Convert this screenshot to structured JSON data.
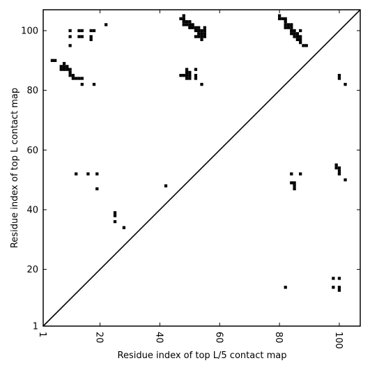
{
  "chart_data": {
    "type": "scatter",
    "title": "",
    "xlabel": "Residue index of top L/5 contact map",
    "ylabel": "Residue index of top L contact map",
    "xlim": [
      1,
      107
    ],
    "ylim": [
      1,
      107
    ],
    "xticks": [
      "1",
      "20",
      "40",
      "60",
      "80",
      "100"
    ],
    "yticks": [
      "1",
      "20",
      "40",
      "60",
      "80",
      "100"
    ],
    "xtick_values": [
      1,
      20,
      40,
      60,
      80,
      100
    ],
    "ytick_values": [
      1,
      20,
      40,
      60,
      80,
      100
    ],
    "x_tick_rotation": -90,
    "grid": false,
    "marker": "square",
    "marker_color": "#000000",
    "diagonal": {
      "from": [
        1,
        1
      ],
      "to": [
        107,
        107
      ],
      "color": "#000000"
    },
    "series": [
      {
        "region": "upper-left",
        "points": [
          [
            10,
            100
          ],
          [
            10,
            98
          ],
          [
            10,
            95
          ],
          [
            13,
            100
          ],
          [
            14,
            100
          ],
          [
            13,
            98
          ],
          [
            14,
            98
          ],
          [
            17,
            100
          ],
          [
            18,
            100
          ],
          [
            17,
            98
          ],
          [
            17,
            97
          ],
          [
            22,
            102
          ],
          [
            4,
            90
          ],
          [
            5,
            90
          ],
          [
            7,
            88
          ],
          [
            7,
            87
          ],
          [
            8,
            89
          ],
          [
            8,
            88
          ],
          [
            8,
            87
          ],
          [
            9,
            88
          ],
          [
            9,
            87
          ],
          [
            10,
            87
          ],
          [
            10,
            86
          ],
          [
            10,
            85
          ],
          [
            11,
            85
          ],
          [
            11,
            84
          ],
          [
            12,
            84
          ],
          [
            13,
            84
          ],
          [
            14,
            84
          ],
          [
            14,
            82
          ],
          [
            18,
            82
          ],
          [
            48,
            105
          ],
          [
            48,
            104
          ],
          [
            47,
            104
          ],
          [
            48,
            103
          ],
          [
            48,
            102
          ],
          [
            49,
            103
          ],
          [
            49,
            102
          ],
          [
            50,
            103
          ],
          [
            50,
            102
          ],
          [
            50,
            101
          ],
          [
            51,
            102
          ],
          [
            51,
            101
          ],
          [
            52,
            101
          ],
          [
            52,
            100
          ],
          [
            53,
            101
          ],
          [
            53,
            100
          ],
          [
            53,
            99
          ],
          [
            52,
            98
          ],
          [
            53,
            98
          ],
          [
            54,
            100
          ],
          [
            54,
            99
          ],
          [
            54,
            98
          ],
          [
            54,
            97
          ],
          [
            55,
            101
          ],
          [
            55,
            100
          ],
          [
            55,
            99
          ],
          [
            55,
            98
          ],
          [
            47,
            85
          ],
          [
            48,
            85
          ],
          [
            49,
            87
          ],
          [
            49,
            86
          ],
          [
            49,
            85
          ],
          [
            49,
            84
          ],
          [
            50,
            86
          ],
          [
            50,
            85
          ],
          [
            50,
            84
          ],
          [
            52,
            87
          ],
          [
            52,
            85
          ],
          [
            52,
            84
          ],
          [
            54,
            82
          ],
          [
            80,
            105
          ],
          [
            80,
            104
          ],
          [
            81,
            104
          ],
          [
            82,
            104
          ],
          [
            82,
            103
          ],
          [
            82,
            102
          ],
          [
            82,
            101
          ],
          [
            83,
            102
          ],
          [
            83,
            101
          ],
          [
            84,
            102
          ],
          [
            84,
            101
          ],
          [
            84,
            100
          ],
          [
            84,
            99
          ],
          [
            85,
            100
          ],
          [
            85,
            99
          ],
          [
            85,
            98
          ],
          [
            86,
            99
          ],
          [
            86,
            98
          ],
          [
            86,
            97
          ],
          [
            87,
            100
          ],
          [
            87,
            98
          ],
          [
            87,
            97
          ],
          [
            87,
            96
          ],
          [
            88,
            95
          ],
          [
            89,
            95
          ],
          [
            100,
            85
          ],
          [
            100,
            84
          ],
          [
            102,
            82
          ],
          [
            12,
            52
          ],
          [
            16,
            52
          ],
          [
            19,
            52
          ],
          [
            19,
            47
          ],
          [
            42,
            48
          ],
          [
            25,
            39
          ],
          [
            25,
            38
          ],
          [
            25,
            36
          ],
          [
            28,
            34
          ],
          [
            84,
            52
          ],
          [
            87,
            52
          ],
          [
            84,
            49
          ],
          [
            85,
            49
          ],
          [
            85,
            48
          ],
          [
            85,
            47
          ],
          [
            99,
            55
          ],
          [
            99,
            54
          ],
          [
            100,
            54
          ],
          [
            100,
            53
          ],
          [
            100,
            52
          ],
          [
            102,
            50
          ],
          [
            98,
            17
          ],
          [
            100,
            17
          ],
          [
            98,
            14
          ],
          [
            100,
            14
          ],
          [
            100,
            13
          ],
          [
            82,
            14
          ]
        ]
      }
    ]
  }
}
